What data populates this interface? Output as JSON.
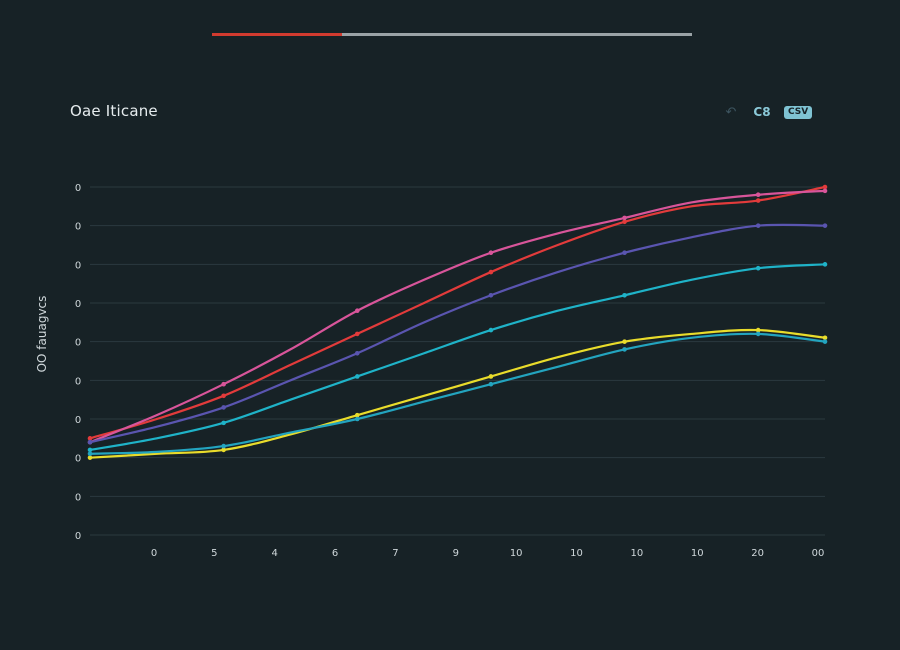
{
  "progress": {
    "fraction": 0.27,
    "fill_color": "#d23b2f",
    "track_color": "#9aa3a6"
  },
  "header": {
    "title": "Oae Iticane",
    "toolbar": [
      {
        "icon": "undo-icon",
        "label": "↶"
      },
      {
        "icon": "link-icon",
        "label": "C8"
      },
      {
        "icon": "export-badge-icon",
        "label": "CSV"
      }
    ]
  },
  "chart_data": {
    "type": "line",
    "title": "Oae Iticane",
    "ylabel": "OO fauagvcs",
    "xlabel": "",
    "x": [
      1,
      2,
      3,
      4,
      5,
      6,
      7,
      8,
      9,
      10,
      11,
      12
    ],
    "x_tick_labels": [
      "0",
      "5",
      "4",
      "6",
      "7",
      "9",
      "10",
      "10",
      "10",
      "10",
      "20",
      "00"
    ],
    "y_tick_labels": [
      "0",
      "0",
      "0",
      "0",
      "0",
      "0",
      "0",
      "0",
      "0",
      "0"
    ],
    "ylim": [
      0,
      9
    ],
    "grid": true,
    "series": [
      {
        "color": "#e23b3b",
        "values": [
          2.5,
          3.0,
          3.6,
          4.4,
          5.2,
          6.0,
          6.8,
          7.5,
          8.1,
          8.5,
          8.65,
          9.0
        ]
      },
      {
        "color": "#d8559a",
        "values": [
          2.4,
          3.1,
          3.9,
          4.8,
          5.8,
          6.6,
          7.3,
          7.8,
          8.2,
          8.6,
          8.8,
          8.9
        ]
      },
      {
        "color": "#5a55b0",
        "values": [
          2.4,
          2.8,
          3.3,
          4.0,
          4.7,
          5.5,
          6.2,
          6.8,
          7.3,
          7.7,
          8.0,
          8.0
        ]
      },
      {
        "color": "#1fb3c8",
        "values": [
          2.2,
          2.5,
          2.9,
          3.5,
          4.1,
          4.7,
          5.3,
          5.8,
          6.2,
          6.6,
          6.9,
          7.0
        ]
      },
      {
        "color": "#e9dc2b",
        "values": [
          2.0,
          2.1,
          2.2,
          2.6,
          3.1,
          3.6,
          4.1,
          4.6,
          5.0,
          5.2,
          5.3,
          5.1
        ]
      },
      {
        "color": "#23a4bf",
        "values": [
          2.1,
          2.15,
          2.3,
          2.65,
          3.0,
          3.45,
          3.9,
          4.35,
          4.8,
          5.1,
          5.2,
          5.0
        ]
      }
    ]
  }
}
